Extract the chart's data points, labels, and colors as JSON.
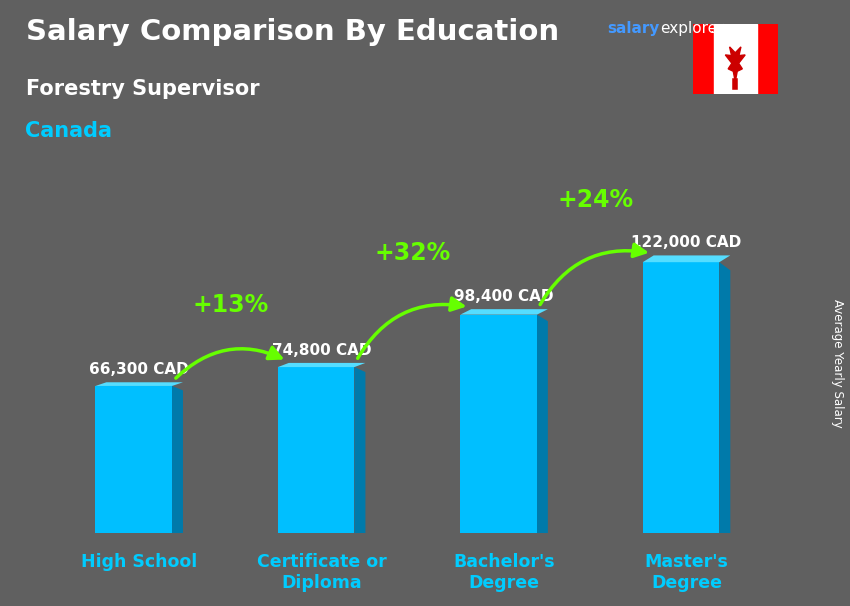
{
  "title": "Salary Comparison By Education",
  "subtitle": "Forestry Supervisor",
  "country": "Canada",
  "ylabel": "Average Yearly Salary",
  "categories": [
    "High School",
    "Certificate or\nDiploma",
    "Bachelor's\nDegree",
    "Master's\nDegree"
  ],
  "values": [
    66300,
    74800,
    98400,
    122000
  ],
  "value_labels": [
    "66,300 CAD",
    "74,800 CAD",
    "98,400 CAD",
    "122,000 CAD"
  ],
  "pct_labels": [
    "+13%",
    "+32%",
    "+24%"
  ],
  "bar_color_face": "#00BFFF",
  "bar_color_side": "#007AAA",
  "bar_color_top": "#55DDFF",
  "bg_color": "#606060",
  "title_color": "#FFFFFF",
  "country_color": "#00CCFF",
  "value_label_color": "#FFFFFF",
  "pct_color": "#66FF00",
  "xtick_color": "#00CCFF",
  "watermark_salary_color": "#4499FF",
  "watermark_explorer_color": "#FFFFFF",
  "ylim": [
    0,
    150000
  ],
  "figsize": [
    8.5,
    6.06
  ],
  "dpi": 100
}
